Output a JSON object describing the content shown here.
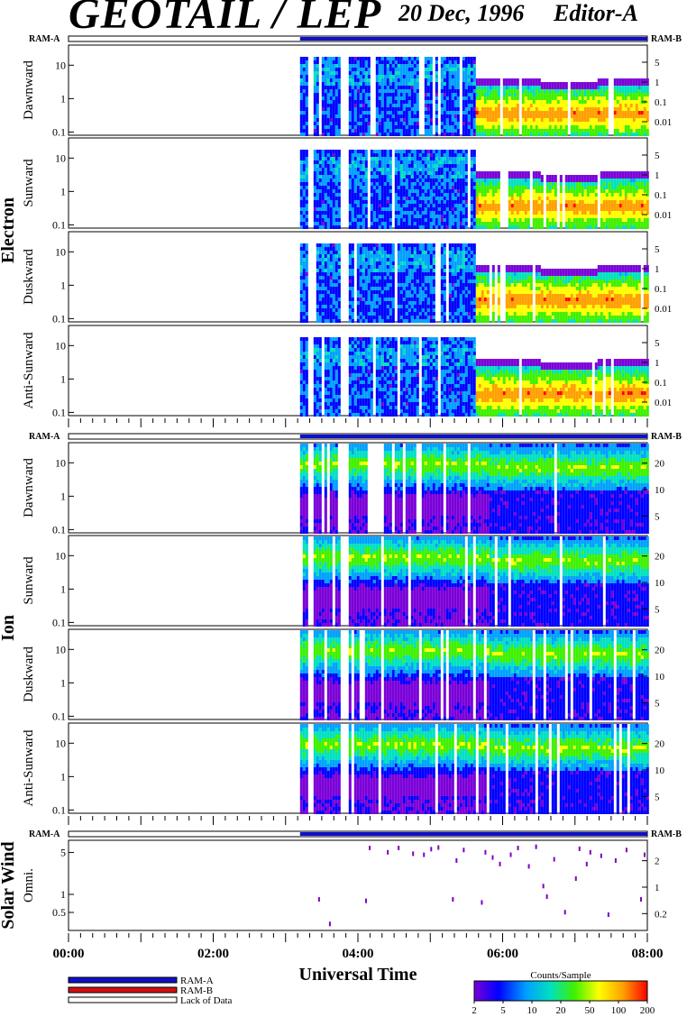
{
  "header": {
    "title": "GEOTAIL / LEP",
    "date": "20 Dec, 1996",
    "editor": "Editor-A"
  },
  "mode_labels": {
    "ram_a": "RAM-A",
    "ram_b": "RAM-B"
  },
  "groups": [
    {
      "label": "Electron"
    },
    {
      "label": "Ion"
    },
    {
      "label": "Solar Wind"
    }
  ],
  "panels": [
    {
      "label": "Dawnward",
      "group": 0,
      "kind": "electron"
    },
    {
      "label": "Sunward",
      "group": 0,
      "kind": "electron"
    },
    {
      "label": "Duskward",
      "group": 0,
      "kind": "electron"
    },
    {
      "label": "Anti-Sunward",
      "group": 0,
      "kind": "electron"
    },
    {
      "label": "Dawnward",
      "group": 1,
      "kind": "ion"
    },
    {
      "label": "Sunward",
      "group": 1,
      "kind": "ion"
    },
    {
      "label": "Duskward",
      "group": 1,
      "kind": "ion"
    },
    {
      "label": "Anti-Sunward",
      "group": 1,
      "kind": "ion"
    },
    {
      "label": "Omni.",
      "group": 2,
      "kind": "solarwind"
    }
  ],
  "axes": {
    "electron_left_ticks": [
      "10",
      "1",
      "0.1"
    ],
    "electron_right_ticks": [
      "5",
      "1",
      "0.1",
      "0.01"
    ],
    "ion_left_ticks": [
      "10",
      "1",
      "0.1"
    ],
    "ion_right_ticks": [
      "20",
      "10",
      "5"
    ],
    "sw_left_ticks": [
      "5",
      "1",
      "0.5"
    ],
    "sw_right_ticks": [
      "2",
      "1",
      "0.2"
    ],
    "x_ticks": [
      "00:00",
      "02:00",
      "04:00",
      "06:00",
      "08:00"
    ],
    "xlabel": "Universal Time"
  },
  "legend": {
    "items": [
      {
        "label": "RAM-A",
        "color": "#1010c8"
      },
      {
        "label": "RAM-B",
        "color": "#d01010"
      },
      {
        "label": "Lack of Data",
        "color": "#ffffff"
      }
    ]
  },
  "colorbar": {
    "title": "Counts/Sample",
    "ticks": [
      "2",
      "5",
      "10",
      "20",
      "50",
      "100",
      "200"
    ],
    "colors": [
      "#7a00d8",
      "#0000ff",
      "#00a0ff",
      "#00e0c0",
      "#40f000",
      "#ffff00",
      "#ffa000",
      "#ff0000"
    ]
  },
  "chart_data": {
    "type": "heatmap",
    "title": "GEOTAIL / LEP",
    "xlabel": "Universal Time",
    "xlim": [
      "00:00",
      "08:00"
    ],
    "x_ticks": [
      "00:00",
      "02:00",
      "04:00",
      "06:00",
      "08:00"
    ],
    "data_start_hour": 3.2,
    "data_gaps_hours": [
      [
        3.3,
        3.35
      ],
      [
        3.75,
        3.85
      ]
    ],
    "mode": "RAM-A",
    "series": [
      {
        "name": "Electron Dawnward",
        "yscale": "log",
        "ylim": [
          0.08,
          40
        ],
        "energy_top_before_5_6h": 20,
        "energy_top_after_5_6h": 5
      },
      {
        "name": "Electron Sunward",
        "yscale": "log",
        "ylim": [
          0.08,
          40
        ],
        "energy_top_before_5_6h": 20,
        "energy_top_after_5_6h": 5
      },
      {
        "name": "Electron Duskward",
        "yscale": "log",
        "ylim": [
          0.08,
          40
        ],
        "energy_top_before_5_6h": 20,
        "energy_top_after_5_6h": 5
      },
      {
        "name": "Electron Anti-Sunward",
        "yscale": "log",
        "ylim": [
          0.08,
          40
        ],
        "energy_top_before_5_6h": 20,
        "energy_top_after_5_6h": 5
      },
      {
        "name": "Ion Dawnward",
        "yscale": "log",
        "ylim": [
          0.08,
          40
        ],
        "peak_energy": 10
      },
      {
        "name": "Ion Sunward",
        "yscale": "log",
        "ylim": [
          0.08,
          40
        ],
        "peak_energy": 10
      },
      {
        "name": "Ion Duskward",
        "yscale": "log",
        "ylim": [
          0.08,
          40
        ],
        "peak_energy": 10
      },
      {
        "name": "Ion Anti-Sunward",
        "yscale": "log",
        "ylim": [
          0.08,
          40
        ],
        "peak_energy": 10
      },
      {
        "name": "Solar Wind Omni.",
        "yscale": "log",
        "ylim": [
          0.25,
          8
        ]
      }
    ],
    "sw_points": [
      [
        3.45,
        0.9
      ],
      [
        3.6,
        0.35
      ],
      [
        4.1,
        0.85
      ],
      [
        4.15,
        6.5
      ],
      [
        4.4,
        5.5
      ],
      [
        4.55,
        6.5
      ],
      [
        4.75,
        5.2
      ],
      [
        4.9,
        5.0
      ],
      [
        5.0,
        6.2
      ],
      [
        5.1,
        6.6
      ],
      [
        5.3,
        0.9
      ],
      [
        5.35,
        4.0
      ],
      [
        5.45,
        6.0
      ],
      [
        5.7,
        0.8
      ],
      [
        5.75,
        5.5
      ],
      [
        5.85,
        4.5
      ],
      [
        5.95,
        3.5
      ],
      [
        6.1,
        5.0
      ],
      [
        6.2,
        6.5
      ],
      [
        6.35,
        3.2
      ],
      [
        6.45,
        6.8
      ],
      [
        6.55,
        1.5
      ],
      [
        6.6,
        1.0
      ],
      [
        6.7,
        4.2
      ],
      [
        6.85,
        0.55
      ],
      [
        7.0,
        2.0
      ],
      [
        7.05,
        6.3
      ],
      [
        7.15,
        3.5
      ],
      [
        7.2,
        5.5
      ],
      [
        7.35,
        4.8
      ],
      [
        7.45,
        0.5
      ],
      [
        7.55,
        4.0
      ],
      [
        7.7,
        6.0
      ],
      [
        7.9,
        0.9
      ],
      [
        7.95,
        5.0
      ]
    ]
  }
}
